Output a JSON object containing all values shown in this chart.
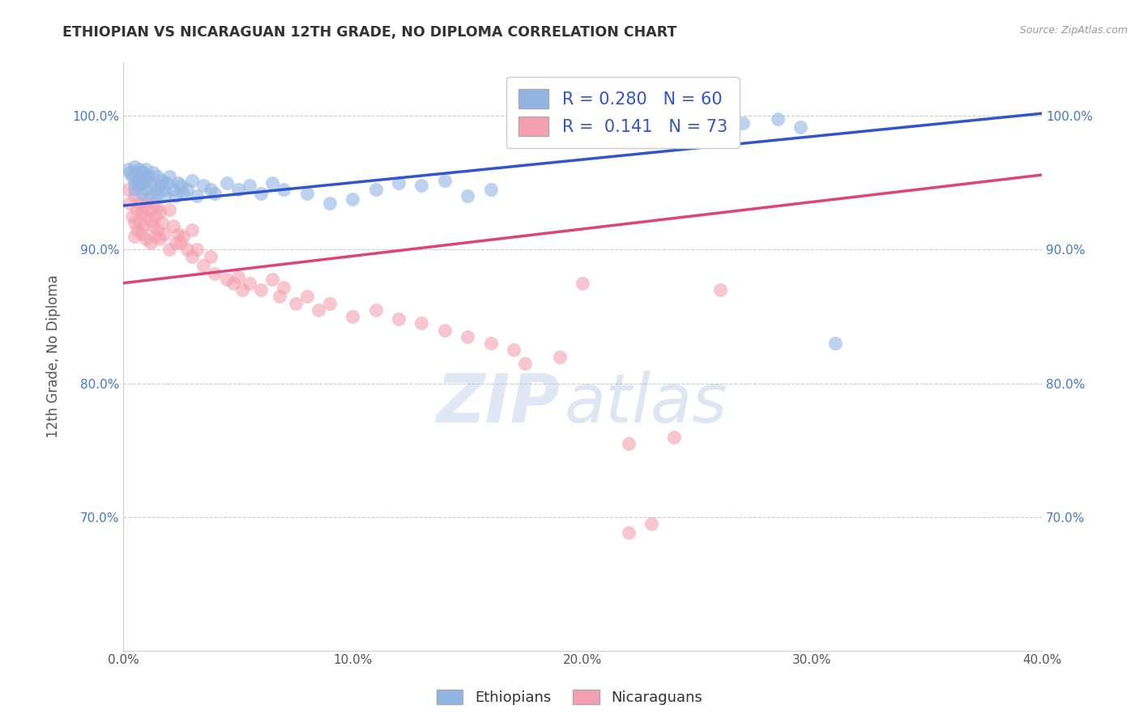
{
  "title": "ETHIOPIAN VS NICARAGUAN 12TH GRADE, NO DIPLOMA CORRELATION CHART",
  "source": "Source: ZipAtlas.com",
  "ylabel": "12th Grade, No Diploma",
  "xmin": 0.0,
  "xmax": 0.4,
  "ymin": 0.6,
  "ymax": 1.04,
  "ytick_labels": [
    "70.0%",
    "80.0%",
    "90.0%",
    "100.0%"
  ],
  "ytick_values": [
    0.7,
    0.8,
    0.9,
    1.0
  ],
  "xtick_labels": [
    "0.0%",
    "10.0%",
    "20.0%",
    "30.0%",
    "40.0%"
  ],
  "xtick_values": [
    0.0,
    0.1,
    0.2,
    0.3,
    0.4
  ],
  "R_blue": 0.28,
  "N_blue": 60,
  "R_pink": 0.141,
  "N_pink": 73,
  "blue_color": "#92B4E3",
  "pink_color": "#F4A0B0",
  "blue_line_color": "#3355CC",
  "pink_line_color": "#DD4477",
  "legend_R_color": "#3355CC",
  "legend_N_color": "#333333",
  "watermark_zip": "ZIP",
  "watermark_atlas": "atlas",
  "blue_points": [
    [
      0.002,
      0.96
    ],
    [
      0.003,
      0.958
    ],
    [
      0.004,
      0.955
    ],
    [
      0.005,
      0.962
    ],
    [
      0.005,
      0.95
    ],
    [
      0.005,
      0.945
    ],
    [
      0.006,
      0.958
    ],
    [
      0.006,
      0.952
    ],
    [
      0.007,
      0.96
    ],
    [
      0.007,
      0.948
    ],
    [
      0.008,
      0.955
    ],
    [
      0.008,
      0.942
    ],
    [
      0.009,
      0.958
    ],
    [
      0.009,
      0.95
    ],
    [
      0.01,
      0.96
    ],
    [
      0.01,
      0.952
    ],
    [
      0.01,
      0.945
    ],
    [
      0.011,
      0.955
    ],
    [
      0.012,
      0.95
    ],
    [
      0.012,
      0.94
    ],
    [
      0.013,
      0.958
    ],
    [
      0.014,
      0.945
    ],
    [
      0.015,
      0.955
    ],
    [
      0.015,
      0.942
    ],
    [
      0.016,
      0.948
    ],
    [
      0.017,
      0.952
    ],
    [
      0.018,
      0.945
    ],
    [
      0.018,
      0.94
    ],
    [
      0.019,
      0.95
    ],
    [
      0.02,
      0.955
    ],
    [
      0.022,
      0.945
    ],
    [
      0.023,
      0.94
    ],
    [
      0.024,
      0.95
    ],
    [
      0.025,
      0.948
    ],
    [
      0.026,
      0.942
    ],
    [
      0.028,
      0.945
    ],
    [
      0.03,
      0.952
    ],
    [
      0.032,
      0.94
    ],
    [
      0.035,
      0.948
    ],
    [
      0.038,
      0.945
    ],
    [
      0.04,
      0.942
    ],
    [
      0.045,
      0.95
    ],
    [
      0.05,
      0.945
    ],
    [
      0.055,
      0.948
    ],
    [
      0.06,
      0.942
    ],
    [
      0.065,
      0.95
    ],
    [
      0.07,
      0.945
    ],
    [
      0.08,
      0.942
    ],
    [
      0.09,
      0.935
    ],
    [
      0.1,
      0.938
    ],
    [
      0.11,
      0.945
    ],
    [
      0.12,
      0.95
    ],
    [
      0.13,
      0.948
    ],
    [
      0.14,
      0.952
    ],
    [
      0.15,
      0.94
    ],
    [
      0.16,
      0.945
    ],
    [
      0.27,
      0.995
    ],
    [
      0.285,
      0.998
    ],
    [
      0.295,
      0.992
    ],
    [
      0.31,
      0.83
    ]
  ],
  "pink_points": [
    [
      0.002,
      0.945
    ],
    [
      0.003,
      0.935
    ],
    [
      0.004,
      0.925
    ],
    [
      0.005,
      0.94
    ],
    [
      0.005,
      0.92
    ],
    [
      0.005,
      0.91
    ],
    [
      0.006,
      0.93
    ],
    [
      0.006,
      0.915
    ],
    [
      0.007,
      0.935
    ],
    [
      0.007,
      0.92
    ],
    [
      0.008,
      0.928
    ],
    [
      0.008,
      0.912
    ],
    [
      0.009,
      0.932
    ],
    [
      0.009,
      0.918
    ],
    [
      0.01,
      0.938
    ],
    [
      0.01,
      0.925
    ],
    [
      0.01,
      0.908
    ],
    [
      0.011,
      0.93
    ],
    [
      0.012,
      0.922
    ],
    [
      0.012,
      0.905
    ],
    [
      0.013,
      0.935
    ],
    [
      0.013,
      0.918
    ],
    [
      0.014,
      0.925
    ],
    [
      0.014,
      0.91
    ],
    [
      0.015,
      0.932
    ],
    [
      0.015,
      0.915
    ],
    [
      0.016,
      0.928
    ],
    [
      0.016,
      0.908
    ],
    [
      0.017,
      0.92
    ],
    [
      0.018,
      0.912
    ],
    [
      0.02,
      0.93
    ],
    [
      0.02,
      0.9
    ],
    [
      0.022,
      0.918
    ],
    [
      0.023,
      0.905
    ],
    [
      0.024,
      0.912
    ],
    [
      0.025,
      0.905
    ],
    [
      0.026,
      0.91
    ],
    [
      0.028,
      0.9
    ],
    [
      0.03,
      0.915
    ],
    [
      0.03,
      0.895
    ],
    [
      0.032,
      0.9
    ],
    [
      0.035,
      0.888
    ],
    [
      0.038,
      0.895
    ],
    [
      0.04,
      0.882
    ],
    [
      0.045,
      0.878
    ],
    [
      0.048,
      0.875
    ],
    [
      0.05,
      0.88
    ],
    [
      0.052,
      0.87
    ],
    [
      0.055,
      0.875
    ],
    [
      0.06,
      0.87
    ],
    [
      0.065,
      0.878
    ],
    [
      0.068,
      0.865
    ],
    [
      0.07,
      0.872
    ],
    [
      0.075,
      0.86
    ],
    [
      0.08,
      0.865
    ],
    [
      0.085,
      0.855
    ],
    [
      0.09,
      0.86
    ],
    [
      0.1,
      0.85
    ],
    [
      0.11,
      0.855
    ],
    [
      0.12,
      0.848
    ],
    [
      0.13,
      0.845
    ],
    [
      0.14,
      0.84
    ],
    [
      0.15,
      0.835
    ],
    [
      0.16,
      0.83
    ],
    [
      0.17,
      0.825
    ],
    [
      0.175,
      0.815
    ],
    [
      0.19,
      0.82
    ],
    [
      0.2,
      0.875
    ],
    [
      0.22,
      0.755
    ],
    [
      0.24,
      0.76
    ],
    [
      0.22,
      0.688
    ],
    [
      0.23,
      0.695
    ],
    [
      0.26,
      0.87
    ]
  ]
}
